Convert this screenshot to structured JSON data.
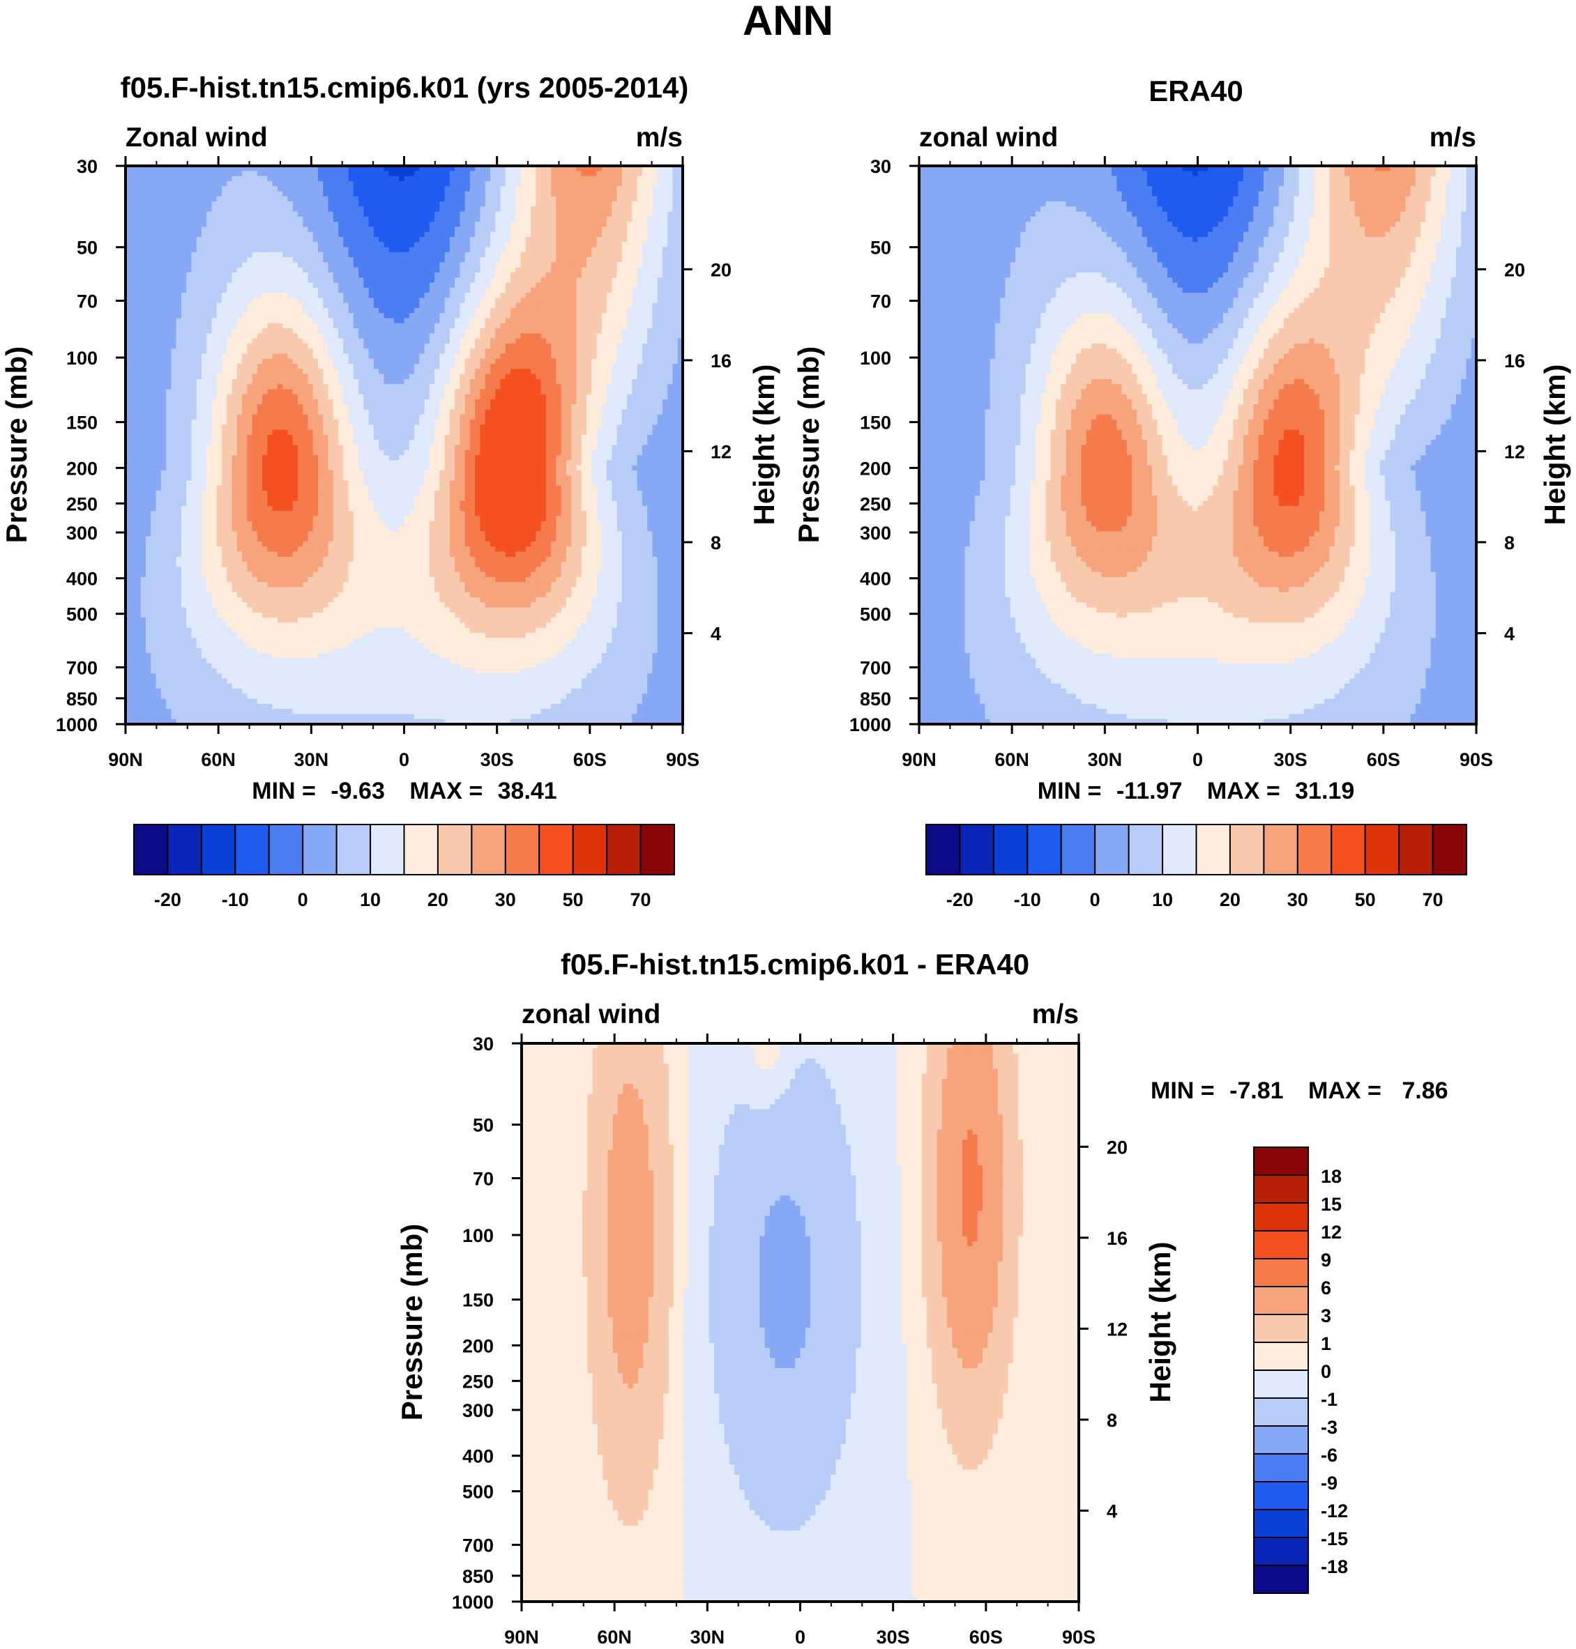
{
  "figure": {
    "title": "ANN"
  },
  "colors": {
    "abs": [
      "#0b0b8a",
      "#0a25b8",
      "#0a3fd8",
      "#1f5bf0",
      "#4a7ef2",
      "#86a8f5",
      "#b8ccf8",
      "#dfe9fb",
      "#fdebdc",
      "#f9c9ae",
      "#f7a37c",
      "#f57a4c",
      "#f45020",
      "#e03208",
      "#b81f07",
      "#8a0606"
    ],
    "diff": [
      "#0b0b8a",
      "#0a25b8",
      "#0a3fd8",
      "#1f5bf0",
      "#4a7ef2",
      "#86a8f5",
      "#b8ccf8",
      "#dfe9fb",
      "#fdebdc",
      "#f9c9ae",
      "#f7a37c",
      "#f57a4c",
      "#f45020",
      "#e03208",
      "#b81f07",
      "#8a0606"
    ]
  },
  "chart_data": [
    {
      "type": "contour",
      "panel": "model",
      "title": "f05.F-hist.tn15.cmip6.k01 (yrs 2005-2014)",
      "left_label": "Zonal wind",
      "right_label": "m/s",
      "xlabel": "",
      "ylabel": "Pressure (mb)",
      "y2label": "Height (km)",
      "stats": {
        "min_label": "MIN =",
        "min": "-9.63",
        "max_label": "MAX =",
        "max": "38.41"
      },
      "x_ticks": [
        "90N",
        "60N",
        "30N",
        "0",
        "30S",
        "60S",
        "90S"
      ],
      "y_ticks": [
        "30",
        "50",
        "70",
        "100",
        "150",
        "200",
        "250",
        "300",
        "400",
        "500",
        "700",
        "850",
        "1000"
      ],
      "y2_ticks": [
        "20",
        "16",
        "12",
        "8",
        "4"
      ],
      "levels": [
        "-20",
        "-10",
        "0",
        "10",
        "20",
        "30",
        "50",
        "70"
      ],
      "jets": [
        {
          "lat": 40,
          "p": 200,
          "peak": 32
        },
        {
          "lat": -35,
          "p": 200,
          "peak": 38
        }
      ],
      "zmin": -9.63,
      "zmax": 38.41
    },
    {
      "type": "contour",
      "panel": "obs",
      "title": "ERA40",
      "left_label": "zonal wind",
      "right_label": "m/s",
      "xlabel": "",
      "ylabel": "Pressure (mb)",
      "y2label": "Height (km)",
      "stats": {
        "min_label": "MIN =",
        "min": "-11.97",
        "max_label": "MAX =",
        "max": "31.19"
      },
      "x_ticks": [
        "90N",
        "60N",
        "30N",
        "0",
        "30S",
        "60S",
        "90S"
      ],
      "y_ticks": [
        "30",
        "50",
        "70",
        "100",
        "150",
        "200",
        "250",
        "300",
        "400",
        "500",
        "700",
        "850",
        "1000"
      ],
      "y2_ticks": [
        "20",
        "16",
        "12",
        "8",
        "4"
      ],
      "levels": [
        "-20",
        "-10",
        "0",
        "10",
        "20",
        "30",
        "50",
        "70"
      ],
      "jets": [
        {
          "lat": 30,
          "p": 200,
          "peak": 28
        },
        {
          "lat": -30,
          "p": 200,
          "peak": 31
        }
      ],
      "zmin": -11.97,
      "zmax": 31.19
    },
    {
      "type": "contour",
      "panel": "difference",
      "title": "f05.F-hist.tn15.cmip6.k01 - ERA40",
      "left_label": "zonal wind",
      "right_label": "m/s",
      "xlabel": "",
      "ylabel": "Pressure (mb)",
      "y2label": "Height (km)",
      "stats": {
        "min_label": "MIN =",
        "min": "-7.81",
        "max_label": "MAX =",
        "max": "7.86"
      },
      "x_ticks": [
        "90N",
        "60N",
        "30N",
        "0",
        "30S",
        "60S",
        "90S"
      ],
      "y_ticks": [
        "30",
        "50",
        "70",
        "100",
        "150",
        "200",
        "250",
        "300",
        "400",
        "500",
        "700",
        "850",
        "1000"
      ],
      "y2_ticks": [
        "20",
        "16",
        "12",
        "8",
        "4"
      ],
      "levels": [
        "18",
        "15",
        "12",
        "9",
        "6",
        "3",
        "1",
        "0",
        "-1",
        "-3",
        "-6",
        "-9",
        "-12",
        "-15",
        "-18"
      ],
      "zmin": -7.81,
      "zmax": 7.86
    }
  ]
}
